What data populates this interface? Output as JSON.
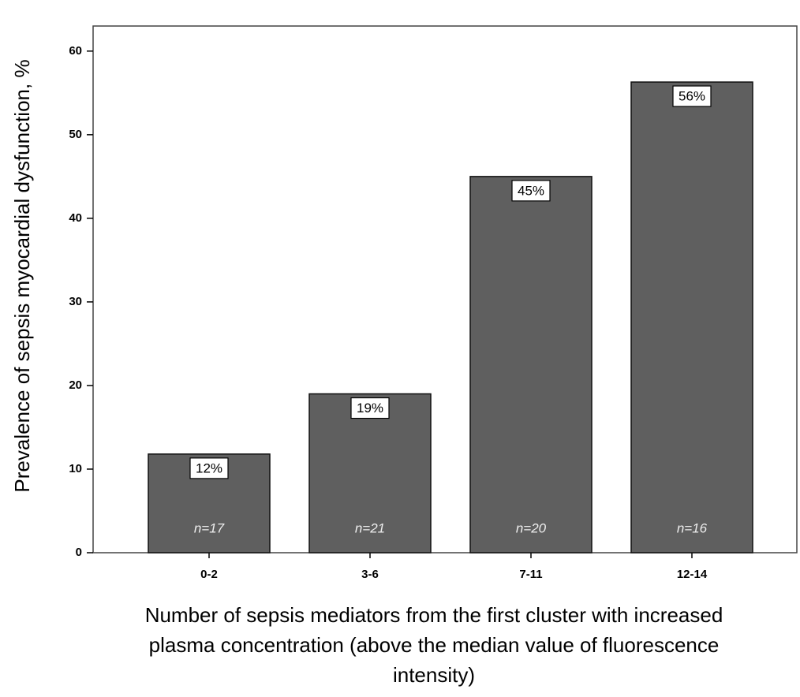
{
  "chart_data": {
    "type": "bar",
    "x_label_lines": [
      "Number of sepsis mediators from the first cluster with increased",
      "plasma concentration (above the median value of fluorescence",
      "intensity)"
    ],
    "y_label": "Prevalence of sepsis myocardial dysfunction, %",
    "categories": [
      "0-2",
      "3-6",
      "7-11",
      "12-14"
    ],
    "values": [
      11.8,
      19,
      45,
      56.3
    ],
    "value_labels": [
      "12%",
      "19%",
      "45%",
      "56%"
    ],
    "annotations": [
      "n=17",
      "n=21",
      "n=20",
      "n=16"
    ],
    "color": "#5f5f5f",
    "ylim": [
      0,
      63
    ],
    "yticks": [
      0,
      10,
      20,
      30,
      40,
      50,
      60
    ]
  }
}
